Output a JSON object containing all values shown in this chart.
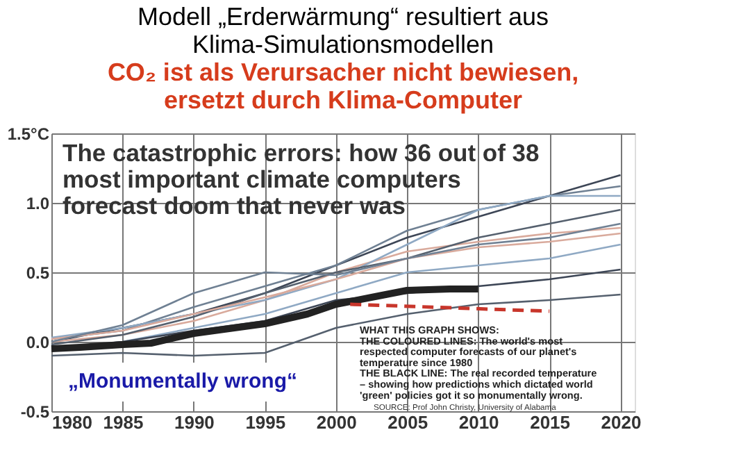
{
  "chart_data": {
    "type": "line",
    "title": [
      "Modell „Erderwärmung“ resultiert aus",
      "Klima-Simulationsmodellen"
    ],
    "subtitle": [
      "CO₂ ist als Verursacher nicht bewiesen,",
      "ersetzt durch Klima-Computer"
    ],
    "x": [
      1980,
      1985,
      1990,
      1995,
      2000,
      2005,
      2010,
      2015,
      2020
    ],
    "xlim": [
      1980,
      2021
    ],
    "xticks": [
      1980,
      1985,
      1990,
      1995,
      2000,
      2005,
      2010,
      2015,
      2020
    ],
    "ylim": [
      -0.5,
      1.5
    ],
    "yticks": [
      {
        "value": -0.5,
        "label": "-0.5"
      },
      {
        "value": 0,
        "label": "0.0"
      },
      {
        "value": 0.5,
        "label": "0.5"
      },
      {
        "value": 1.0,
        "label": "1.0"
      },
      {
        "value": 1.5,
        "label": "1.5°C"
      }
    ],
    "grid": true,
    "marker": "none",
    "series": [
      {
        "color": "#3d4656",
        "values": [
          0.0,
          0.1,
          0.2,
          0.35,
          0.55,
          0.75,
          0.9,
          1.05,
          1.2
        ]
      },
      {
        "color": "#6f8093",
        "values": [
          0.02,
          0.08,
          0.25,
          0.4,
          0.55,
          0.8,
          0.95,
          1.05,
          1.12
        ]
      },
      {
        "color": "#d9aa9c",
        "values": [
          0.0,
          0.05,
          0.15,
          0.3,
          0.5,
          0.65,
          0.72,
          0.78,
          0.82
        ]
      },
      {
        "color": "#8fa9c4",
        "values": [
          0.03,
          0.1,
          0.2,
          0.3,
          0.45,
          0.7,
          0.95,
          1.05,
          1.05
        ]
      },
      {
        "color": "#55606e",
        "values": [
          -0.02,
          0.05,
          0.18,
          0.35,
          0.5,
          0.6,
          0.75,
          0.85,
          0.95
        ]
      },
      {
        "color": "#d9aa9c",
        "values": [
          0.02,
          0.08,
          0.2,
          0.32,
          0.45,
          0.6,
          0.68,
          0.72,
          0.78
        ]
      },
      {
        "color": "#6f8093",
        "values": [
          0.0,
          0.12,
          0.35,
          0.5,
          0.48,
          0.6,
          0.7,
          0.75,
          0.85
        ]
      },
      {
        "color": "#8fa9c4",
        "values": [
          -0.05,
          0.0,
          0.1,
          0.2,
          0.35,
          0.5,
          0.55,
          0.6,
          0.7
        ]
      },
      {
        "color": "#3d4656",
        "values": [
          -0.05,
          0.0,
          0.08,
          0.15,
          0.3,
          0.35,
          0.4,
          0.45,
          0.52
        ]
      },
      {
        "color": "#55606e",
        "values": [
          -0.1,
          -0.08,
          -0.1,
          -0.08,
          0.1,
          0.2,
          0.27,
          0.3,
          0.34
        ]
      },
      {
        "color": "#222222",
        "x": [
          1980,
          1982,
          1985,
          1987,
          1990,
          1995,
          1998,
          2000,
          2001,
          2003,
          2005,
          2008,
          2010
        ],
        "values": [
          -0.05,
          -0.04,
          -0.02,
          -0.01,
          0.06,
          0.13,
          0.2,
          0.27,
          0.29,
          0.33,
          0.37,
          0.38,
          0.38
        ]
      },
      {
        "color": "#c8362b",
        "line_style": "dashed",
        "x": [
          2001,
          2015
        ],
        "values": [
          0.27,
          0.22
        ]
      }
    ],
    "annotations": [
      "The catastrophic errors: how 36 out of 38\nmost important climate computers\nforecast doom that never was",
      "„Monumentally wrong“",
      "WHAT THIS GRAPH SHOWS:\nTHE COLOURED LINES: The world's most\nrespected computer forecasts of our planet's\ntemperature since 1980\nTHE BLACK LINE: The real recorded temperature\n– showing how predictions which dictated world\n'green' policies got it so monumentally wrong.",
      "SOURCE: Prof John Christy, University of Alabama"
    ]
  }
}
